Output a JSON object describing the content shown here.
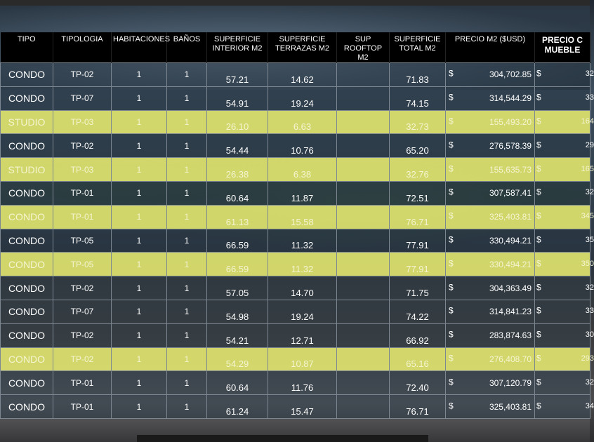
{
  "headers": {
    "tipo": "TIPO",
    "tipologia": "TIPOLOGIA",
    "habitaciones": "HABITACIONES",
    "banos": "BAÑOS",
    "sup_interior_1": "SUPERFICIE",
    "sup_interior_2": "INTERIOR M2",
    "sup_terrazas_1": "SUPERFICIE",
    "sup_terrazas_2": "TERRAZAS M2",
    "sup_rooftop_1": "SUP ROOFTOP",
    "sup_rooftop_2": "M2",
    "sup_total_1": "SUPERFICIE",
    "sup_total_2": "TOTAL M2",
    "precio_m2": "PRECIO M2 ($USD)",
    "precio_muebles_1": "PRECIO C",
    "precio_muebles_2": "MUEBLE"
  },
  "currency": "$",
  "rows": [
    {
      "tipo": "CONDO",
      "tipologia": "TP-02",
      "hab": "1",
      "banos": "1",
      "interior": "57.21",
      "terrazas": "14.62",
      "rooftop": "",
      "total": "71.83",
      "precio_m2": "304,702.85",
      "muebles": "32",
      "highlight": false
    },
    {
      "tipo": "CONDO",
      "tipologia": "TP-07",
      "hab": "1",
      "banos": "1",
      "interior": "54.91",
      "terrazas": "19.24",
      "rooftop": "",
      "total": "74.15",
      "precio_m2": "314,544.29",
      "muebles": "33",
      "highlight": false
    },
    {
      "tipo": "STUDIO",
      "tipologia": "TP-03",
      "hab": "1",
      "banos": "1",
      "interior": "26.10",
      "terrazas": "6.63",
      "rooftop": "",
      "total": "32.73",
      "precio_m2": "155,493.20",
      "muebles": "164",
      "highlight": true
    },
    {
      "tipo": "CONDO",
      "tipologia": "TP-02",
      "hab": "1",
      "banos": "1",
      "interior": "54.44",
      "terrazas": "10.76",
      "rooftop": "",
      "total": "65.20",
      "precio_m2": "276,578.39",
      "muebles": "29",
      "highlight": false
    },
    {
      "tipo": "STUDIO",
      "tipologia": "TP-03",
      "hab": "1",
      "banos": "1",
      "interior": "26.38",
      "terrazas": "6.38",
      "rooftop": "",
      "total": "32.76",
      "precio_m2": "155,635.73",
      "muebles": "165",
      "highlight": true
    },
    {
      "tipo": "CONDO",
      "tipologia": "TP-01",
      "hab": "1",
      "banos": "1",
      "interior": "60.64",
      "terrazas": "11.87",
      "rooftop": "",
      "total": "72.51",
      "precio_m2": "307,587.41",
      "muebles": "32",
      "highlight": false
    },
    {
      "tipo": "CONDO",
      "tipologia": "TP-01",
      "hab": "1",
      "banos": "1",
      "interior": "61.13",
      "terrazas": "15.58",
      "rooftop": "",
      "total": "76.71",
      "precio_m2": "325,403.81",
      "muebles": "345",
      "highlight": true
    },
    {
      "tipo": "CONDO",
      "tipologia": "TP-05",
      "hab": "1",
      "banos": "1",
      "interior": "66.59",
      "terrazas": "11.32",
      "rooftop": "",
      "total": "77.91",
      "precio_m2": "330,494.21",
      "muebles": "35",
      "highlight": false
    },
    {
      "tipo": "CONDO",
      "tipologia": "TP-05",
      "hab": "1",
      "banos": "1",
      "interior": "66.59",
      "terrazas": "11.32",
      "rooftop": "",
      "total": "77.91",
      "precio_m2": "330,494.21",
      "muebles": "350",
      "highlight": true
    },
    {
      "tipo": "CONDO",
      "tipologia": "TP-02",
      "hab": "1",
      "banos": "1",
      "interior": "57.05",
      "terrazas": "14.70",
      "rooftop": "",
      "total": "71.75",
      "precio_m2": "304,363.49",
      "muebles": "32",
      "highlight": false
    },
    {
      "tipo": "CONDO",
      "tipologia": "TP-07",
      "hab": "1",
      "banos": "1",
      "interior": "54.98",
      "terrazas": "19.24",
      "rooftop": "",
      "total": "74.22",
      "precio_m2": "314,841.23",
      "muebles": "33",
      "highlight": false
    },
    {
      "tipo": "CONDO",
      "tipologia": "TP-02",
      "hab": "1",
      "banos": "1",
      "interior": "54.21",
      "terrazas": "12.71",
      "rooftop": "",
      "total": "66.92",
      "precio_m2": "283,874.63",
      "muebles": "30",
      "highlight": false
    },
    {
      "tipo": "CONDO",
      "tipologia": "TP-02",
      "hab": "1",
      "banos": "1",
      "interior": "54.29",
      "terrazas": "10.87",
      "rooftop": "",
      "total": "65.16",
      "precio_m2": "276,408.70",
      "muebles": "293",
      "highlight": true
    },
    {
      "tipo": "CONDO",
      "tipologia": "TP-01",
      "hab": "1",
      "banos": "1",
      "interior": "60.64",
      "terrazas": "11.76",
      "rooftop": "",
      "total": "72.40",
      "precio_m2": "307,120.79",
      "muebles": "32",
      "highlight": false
    },
    {
      "tipo": "CONDO",
      "tipologia": "TP-01",
      "hab": "1",
      "banos": "1",
      "interior": "61.24",
      "terrazas": "15.47",
      "rooftop": "",
      "total": "76.71",
      "precio_m2": "325,403.81",
      "muebles": "34",
      "highlight": false
    }
  ]
}
